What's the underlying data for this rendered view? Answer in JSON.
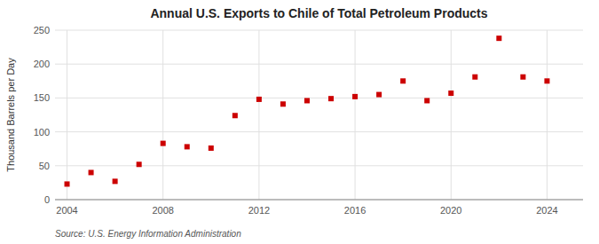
{
  "chart_data": {
    "type": "scatter",
    "title": "Annual U.S. Exports to Chile of Total Petroleum Products",
    "ylabel": "Thousand Barrels per Day",
    "source": "Source: U.S. Energy Information Administration",
    "x": [
      2004,
      2005,
      2006,
      2007,
      2008,
      2009,
      2010,
      2011,
      2012,
      2013,
      2014,
      2015,
      2016,
      2017,
      2018,
      2019,
      2020,
      2021,
      2022,
      2023,
      2024
    ],
    "values": [
      23,
      40,
      27,
      52,
      83,
      78,
      76,
      124,
      148,
      141,
      146,
      149,
      152,
      155,
      175,
      146,
      157,
      181,
      238,
      181,
      175
    ],
    "color": "#cc0000",
    "marker": "square",
    "xlim": [
      2003.5,
      2025.5
    ],
    "xticks": [
      2004,
      2008,
      2012,
      2016,
      2020,
      2024
    ],
    "ylim": [
      0,
      250
    ],
    "yticks": [
      0,
      50,
      100,
      150,
      200,
      250
    ],
    "grid": true
  }
}
